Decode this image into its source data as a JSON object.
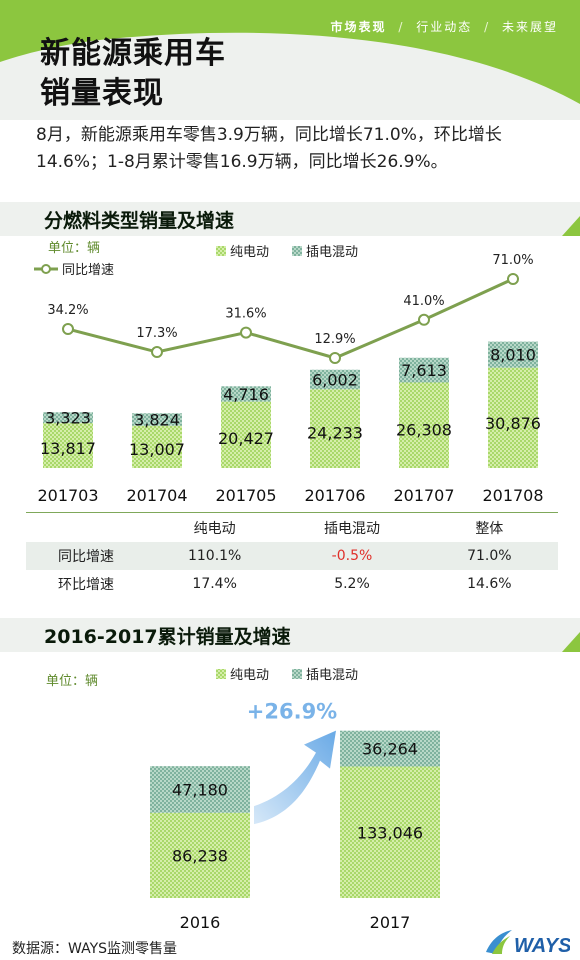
{
  "nav": {
    "items": [
      "市场表现",
      "行业动态",
      "未来展望"
    ],
    "separator": "/"
  },
  "title": {
    "line1": "新能源乘用车",
    "line2": "销量表现"
  },
  "summary": "8月，新能源乘用车零售3.9万辆，同比增长71.0%，环比增长14.6%；1-8月累计零售16.9万辆，同比增长26.9%。",
  "section1": {
    "title": "分燃料类型销量及增速"
  },
  "section2": {
    "title": "2016-2017累计销量及增速"
  },
  "chart_data": [
    {
      "type": "bar",
      "stacked": true,
      "unit_label": "单位：辆",
      "categories": [
        "201703",
        "201704",
        "201705",
        "201706",
        "201707",
        "201708"
      ],
      "series": [
        {
          "name": "纯电动",
          "values": [
            13817,
            13007,
            20427,
            24233,
            26308,
            30876
          ]
        },
        {
          "name": "插电混动",
          "values": [
            3323,
            3824,
            4716,
            6002,
            7613,
            8010
          ]
        }
      ],
      "line_series": {
        "name": "同比增速",
        "values": [
          34.2,
          17.3,
          31.6,
          12.9,
          41.0,
          71.0
        ],
        "labels": [
          "34.2%",
          "17.3%",
          "31.6%",
          "12.9%",
          "41.0%",
          "71.0%"
        ]
      },
      "bar_labels": {
        "bev": [
          "13,817",
          "13,007",
          "20,427",
          "24,233",
          "26,308",
          "30,876"
        ],
        "phev": [
          "3,323",
          "3,824",
          "4,716",
          "6,002",
          "7,613",
          "8,010"
        ]
      },
      "legend_position": "top",
      "grid": false
    },
    {
      "type": "bar",
      "stacked": true,
      "unit_label": "单位：辆",
      "categories": [
        "2016",
        "2017"
      ],
      "series": [
        {
          "name": "纯电动",
          "values": [
            86238,
            133046
          ]
        },
        {
          "name": "插电混动",
          "values": [
            47180,
            36264
          ]
        }
      ],
      "bar_labels": {
        "bev": [
          "86,238",
          "133,046"
        ],
        "phev": [
          "47,180",
          "36,264"
        ]
      },
      "growth_annotation": "+26.9%",
      "legend_position": "top",
      "grid": false
    }
  ],
  "table": {
    "headers": [
      "",
      "纯电动",
      "插电混动",
      "整体"
    ],
    "rows": [
      {
        "label": "同比增速",
        "values": [
          "110.1%",
          "-0.5%",
          "71.0%"
        ]
      },
      {
        "label": "环比增速",
        "values": [
          "17.4%",
          "5.2%",
          "14.6%"
        ]
      }
    ]
  },
  "colors": {
    "green_accent": "#8cc63f",
    "line_green": "#7ea04f",
    "negative_red": "#e0302a",
    "arrow_blue": "#7ab3e8"
  },
  "footer": {
    "source": "数据源：WAYS监测零售量",
    "logo_text": "WAYS"
  }
}
